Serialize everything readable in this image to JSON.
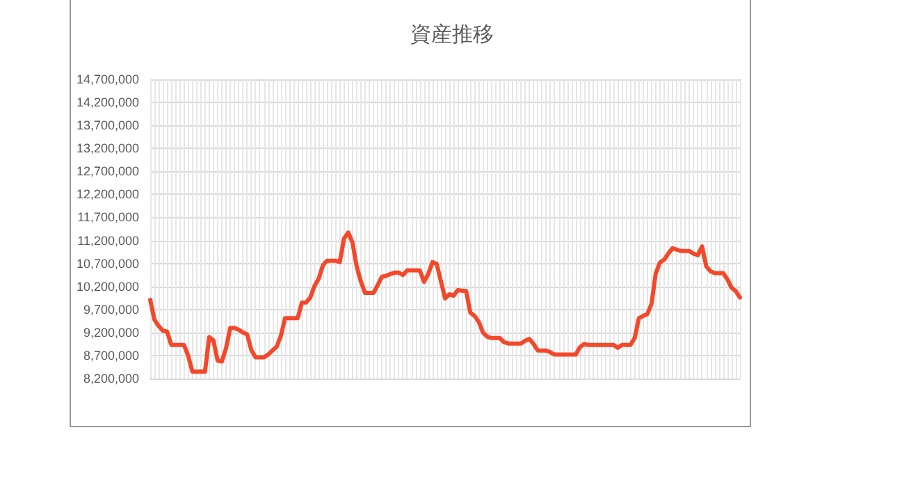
{
  "chart_data": {
    "type": "line",
    "title": "資産推移",
    "categories": [
      null,
      null,
      null,
      null,
      null,
      null,
      null,
      null,
      null,
      null,
      null,
      null,
      null,
      null,
      null,
      null,
      null,
      null,
      null,
      null,
      null,
      null,
      null,
      null,
      null,
      null,
      null,
      null,
      null,
      null,
      null,
      null,
      null,
      null,
      null,
      null,
      null,
      null,
      null,
      null,
      null,
      null,
      null,
      null,
      null,
      null,
      null,
      null,
      null,
      null,
      null,
      null,
      null,
      null,
      null,
      null,
      null,
      null,
      null,
      null,
      null,
      null,
      null,
      null,
      null,
      null,
      null,
      null,
      null,
      null,
      null,
      null,
      null,
      null,
      null,
      null,
      null,
      null,
      null,
      null,
      null,
      null,
      null,
      null,
      null,
      null,
      null,
      null,
      null,
      null,
      null,
      null,
      null,
      null,
      null,
      null,
      null,
      null,
      null,
      null,
      null,
      null,
      null,
      null,
      null,
      null,
      null,
      null,
      null,
      null,
      null,
      null,
      null,
      null,
      null,
      null,
      null,
      null,
      null,
      null,
      null,
      null,
      null,
      null,
      null,
      null,
      null,
      null,
      null,
      null,
      null,
      null,
      null,
      null,
      null,
      null,
      null,
      null,
      null,
      null,
      null
    ],
    "series": [
      {
        "color": "#f4482a",
        "values": [
          9910000,
          9480000,
          9340000,
          9240000,
          9220000,
          8930000,
          8930000,
          8930000,
          8930000,
          8700000,
          8350000,
          8350000,
          8350000,
          8350000,
          9100000,
          9030000,
          8590000,
          8570000,
          8860000,
          9300000,
          9300000,
          9260000,
          9200000,
          9160000,
          8820000,
          8660000,
          8660000,
          8660000,
          8720000,
          8810000,
          8890000,
          9120000,
          9510000,
          9510000,
          9510000,
          9510000,
          9850000,
          9850000,
          9960000,
          10210000,
          10370000,
          10660000,
          10760000,
          10760000,
          10760000,
          10730000,
          11240000,
          11370000,
          11160000,
          10640000,
          10310000,
          10060000,
          10060000,
          10060000,
          10230000,
          10410000,
          10430000,
          10470000,
          10500000,
          10500000,
          10450000,
          10550000,
          10550000,
          10550000,
          10550000,
          10300000,
          10470000,
          10730000,
          10690000,
          10320000,
          9940000,
          10030000,
          10000000,
          10120000,
          10110000,
          10100000,
          9630000,
          9560000,
          9430000,
          9200000,
          9110000,
          9080000,
          9080000,
          9080000,
          8990000,
          8960000,
          8960000,
          8960000,
          8960000,
          9020000,
          9060000,
          8950000,
          8810000,
          8810000,
          8810000,
          8770000,
          8720000,
          8720000,
          8720000,
          8720000,
          8720000,
          8720000,
          8880000,
          8950000,
          8930000,
          8930000,
          8930000,
          8930000,
          8930000,
          8930000,
          8930000,
          8870000,
          8930000,
          8930000,
          8930000,
          9080000,
          9510000,
          9560000,
          9600000,
          9820000,
          10480000,
          10720000,
          10780000,
          10920000,
          11030000,
          11000000,
          10970000,
          10970000,
          10970000,
          10910000,
          10880000,
          11070000,
          10640000,
          10530000,
          10490000,
          10490000,
          10490000,
          10360000,
          10170000,
          10100000,
          9960000
        ]
      }
    ],
    "ylim": [
      8200000,
      14700000
    ],
    "yticks": [
      {
        "value": 8200000,
        "label": "8,200,000"
      },
      {
        "value": 8700000,
        "label": "8,700,000"
      },
      {
        "value": 9200000,
        "label": "9,200,000"
      },
      {
        "value": 9700000,
        "label": "9,700,000"
      },
      {
        "value": 10200000,
        "label": "10,200,000"
      },
      {
        "value": 10700000,
        "label": "10,700,000"
      },
      {
        "value": 11200000,
        "label": "11,200,000"
      },
      {
        "value": 11700000,
        "label": "11,700,000"
      },
      {
        "value": 12200000,
        "label": "12,200,000"
      },
      {
        "value": 12700000,
        "label": "12,700,000"
      },
      {
        "value": 13200000,
        "label": "13,200,000"
      },
      {
        "value": 13700000,
        "label": "13,700,000"
      },
      {
        "value": 14200000,
        "label": "14,200,000"
      },
      {
        "value": 14700000,
        "label": "14,700,000"
      }
    ],
    "grid": true,
    "marker": "none",
    "line_style": "solid"
  }
}
